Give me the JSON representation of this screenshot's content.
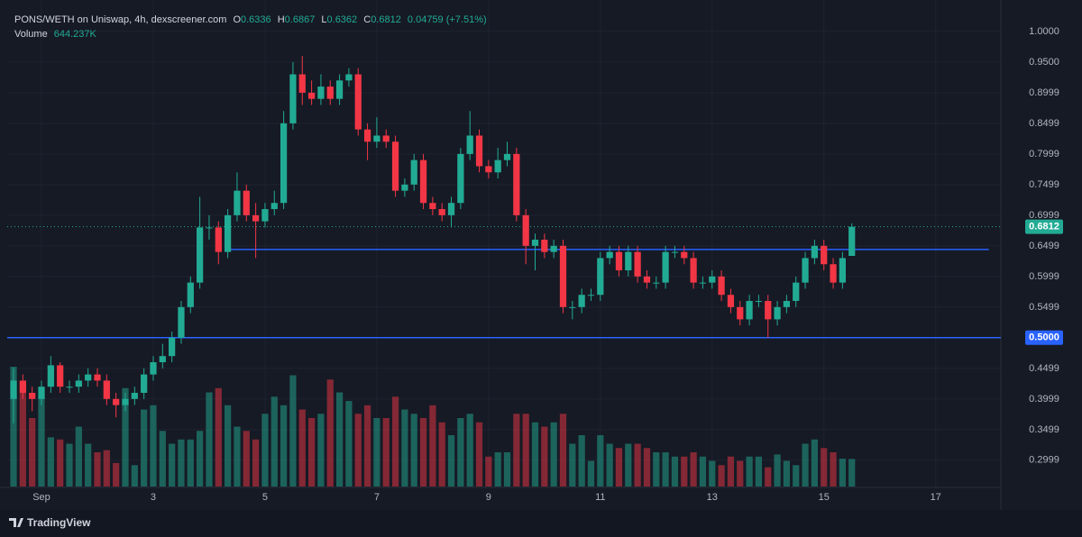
{
  "chart_data": {
    "type": "candlestick",
    "title": "PONS/WETH on Uniswap, 4h, dexscreener.com",
    "ohlc_letters": [
      "O",
      "H",
      "L",
      "C"
    ],
    "change": "0.04759 (+7.51%)",
    "volume_title": "Volume",
    "last_volume": "644.237K",
    "brand": "TradingView",
    "up_color": "#22ab94",
    "down_color": "#f23645",
    "open": [
      0.4,
      0.43,
      0.41,
      0.4,
      0.42,
      0.455,
      0.42,
      0.42,
      0.43,
      0.44,
      0.43,
      0.4,
      0.39,
      0.4,
      0.41,
      0.44,
      0.46,
      0.47,
      0.5,
      0.55,
      0.59,
      0.68,
      0.68,
      0.64,
      0.7,
      0.74,
      0.7,
      0.69,
      0.71,
      0.72,
      0.85,
      0.93,
      0.9,
      0.89,
      0.91,
      0.89,
      0.92,
      0.93,
      0.84,
      0.82,
      0.83,
      0.82,
      0.74,
      0.75,
      0.79,
      0.72,
      0.71,
      0.7,
      0.72,
      0.8,
      0.83,
      0.78,
      0.77,
      0.79,
      0.8,
      0.7,
      0.65,
      0.66,
      0.64,
      0.65,
      0.55,
      0.55,
      0.57,
      0.57,
      0.63,
      0.64,
      0.61,
      0.64,
      0.6,
      0.59,
      0.59,
      0.64,
      0.64,
      0.63,
      0.59,
      0.59,
      0.6,
      0.57,
      0.55,
      0.53,
      0.56,
      0.56,
      0.53,
      0.55,
      0.56,
      0.59,
      0.63,
      0.65,
      0.62,
      0.59,
      0.6336
    ],
    "high": [
      0.45,
      0.44,
      0.42,
      0.43,
      0.47,
      0.46,
      0.43,
      0.44,
      0.45,
      0.45,
      0.44,
      0.41,
      0.41,
      0.42,
      0.45,
      0.47,
      0.49,
      0.51,
      0.56,
      0.6,
      0.73,
      0.7,
      0.69,
      0.71,
      0.77,
      0.75,
      0.72,
      0.72,
      0.74,
      0.87,
      0.95,
      0.96,
      0.92,
      0.93,
      0.92,
      0.93,
      0.94,
      0.94,
      0.85,
      0.86,
      0.84,
      0.83,
      0.76,
      0.8,
      0.8,
      0.73,
      0.72,
      0.73,
      0.81,
      0.87,
      0.84,
      0.79,
      0.81,
      0.82,
      0.81,
      0.71,
      0.67,
      0.67,
      0.66,
      0.66,
      0.56,
      0.58,
      0.58,
      0.64,
      0.65,
      0.65,
      0.65,
      0.65,
      0.61,
      0.6,
      0.65,
      0.65,
      0.65,
      0.64,
      0.6,
      0.61,
      0.61,
      0.58,
      0.56,
      0.57,
      0.57,
      0.57,
      0.56,
      0.57,
      0.6,
      0.64,
      0.66,
      0.66,
      0.63,
      0.64,
      0.6867
    ],
    "low": [
      0.36,
      0.4,
      0.38,
      0.39,
      0.41,
      0.41,
      0.41,
      0.41,
      0.42,
      0.42,
      0.39,
      0.37,
      0.38,
      0.39,
      0.4,
      0.43,
      0.45,
      0.46,
      0.49,
      0.54,
      0.58,
      0.66,
      0.62,
      0.63,
      0.69,
      0.69,
      0.63,
      0.68,
      0.7,
      0.71,
      0.84,
      0.88,
      0.88,
      0.88,
      0.88,
      0.88,
      0.91,
      0.83,
      0.79,
      0.81,
      0.81,
      0.73,
      0.73,
      0.74,
      0.71,
      0.7,
      0.69,
      0.68,
      0.71,
      0.79,
      0.77,
      0.76,
      0.76,
      0.78,
      0.69,
      0.62,
      0.61,
      0.63,
      0.63,
      0.54,
      0.53,
      0.54,
      0.56,
      0.56,
      0.62,
      0.6,
      0.6,
      0.59,
      0.58,
      0.58,
      0.58,
      0.63,
      0.62,
      0.58,
      0.58,
      0.58,
      0.56,
      0.54,
      0.52,
      0.52,
      0.55,
      0.5,
      0.52,
      0.54,
      0.55,
      0.58,
      0.62,
      0.61,
      0.58,
      0.58,
      0.6362
    ],
    "close": [
      0.43,
      0.41,
      0.4,
      0.42,
      0.455,
      0.42,
      0.42,
      0.43,
      0.44,
      0.43,
      0.4,
      0.39,
      0.4,
      0.41,
      0.44,
      0.46,
      0.47,
      0.5,
      0.55,
      0.59,
      0.68,
      0.68,
      0.64,
      0.7,
      0.74,
      0.7,
      0.69,
      0.71,
      0.72,
      0.85,
      0.93,
      0.9,
      0.89,
      0.91,
      0.89,
      0.92,
      0.93,
      0.84,
      0.82,
      0.83,
      0.82,
      0.74,
      0.75,
      0.79,
      0.72,
      0.71,
      0.7,
      0.72,
      0.8,
      0.83,
      0.78,
      0.77,
      0.79,
      0.8,
      0.7,
      0.65,
      0.66,
      0.64,
      0.65,
      0.55,
      0.55,
      0.57,
      0.57,
      0.63,
      0.64,
      0.61,
      0.64,
      0.6,
      0.59,
      0.59,
      0.64,
      0.64,
      0.63,
      0.59,
      0.59,
      0.6,
      0.57,
      0.55,
      0.53,
      0.56,
      0.56,
      0.53,
      0.55,
      0.56,
      0.59,
      0.63,
      0.65,
      0.62,
      0.59,
      0.63,
      0.6812
    ],
    "volume": [
      2800000,
      2200000,
      1600000,
      2100000,
      1150000,
      1100000,
      1000000,
      1400000,
      1000000,
      800000,
      850000,
      550000,
      2300000,
      500000,
      1800000,
      1900000,
      1300000,
      1000000,
      1100000,
      1100000,
      1300000,
      2200000,
      2300000,
      1900000,
      1400000,
      1300000,
      1100000,
      1700000,
      2100000,
      1900000,
      2600000,
      1800000,
      1600000,
      1700000,
      2500000,
      2200000,
      2000000,
      1700000,
      1900000,
      1600000,
      1600000,
      2100000,
      1800000,
      1700000,
      1600000,
      1900000,
      1500000,
      1200000,
      1600000,
      1700000,
      1500000,
      700000,
      800000,
      800000,
      1700000,
      1700000,
      1500000,
      1400000,
      1500000,
      1700000,
      1000000,
      1200000,
      600000,
      1200000,
      1000000,
      900000,
      1000000,
      1000000,
      900000,
      800000,
      800000,
      700000,
      700000,
      800000,
      700000,
      600000,
      500000,
      700000,
      600000,
      700000,
      700000,
      450000,
      750000,
      600000,
      500000,
      1000000,
      1100000,
      900000,
      800000,
      650000,
      644237
    ],
    "xlim": [
      -0.68,
      106
    ],
    "xticks": [
      {
        "value": 3,
        "label": "Sep"
      },
      {
        "value": 15,
        "label": "3"
      },
      {
        "value": 27,
        "label": "5"
      },
      {
        "value": 39,
        "label": "7"
      },
      {
        "value": 51,
        "label": "9"
      },
      {
        "value": 63,
        "label": "11"
      },
      {
        "value": 75,
        "label": "13"
      },
      {
        "value": 87,
        "label": "15"
      },
      {
        "value": 99,
        "label": "17"
      }
    ],
    "ylim": [
      0.257,
      1.019
    ],
    "yticks": [
      {
        "value": 1,
        "label": "1.0000"
      },
      {
        "value": 0.95,
        "label": "0.9500"
      },
      0.8999,
      0.8499,
      0.7999,
      0.7499,
      0.6999,
      0.6499,
      0.5999,
      0.5499,
      0.4499,
      0.3999,
      0.3499,
      0.2999
    ],
    "grid": true,
    "hlines": [
      {
        "value": 0.5,
        "label": "0.5000",
        "color": "#2962ff"
      },
      {
        "value": 0.644,
        "color": "#2962ff",
        "x_start": 22.7,
        "x_end": 104.7
      }
    ]
  }
}
